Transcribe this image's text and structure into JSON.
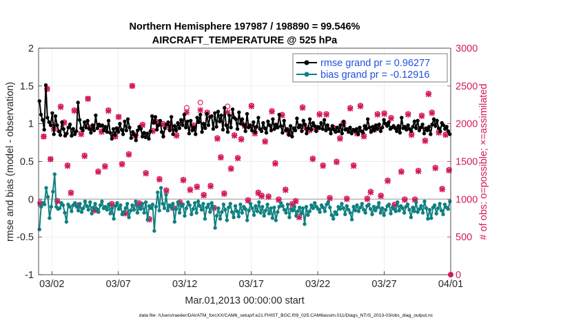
{
  "chart_data": {
    "type": "line",
    "title": "Northern Hemisphere 197987 / 198890 = 99.546%",
    "subtitle": "AIRCRAFT_TEMPERATURE @ 525 hPa",
    "xlabel": "Mar.01,2013 00:00:00 start",
    "ylabel_left": "rmse and bias (model - observation)",
    "ylabel_right": "# of obs: o=possible; ×=assimilated",
    "footer": "data file: /Users/raeder/DAI/ATM_forcXX/CAM6_setup/f.e21.FHIST_BGC.f09_025.CAM6assim.011/Diags_NTrS_2013-03/obs_diag_output.nc",
    "x_tick_labels": [
      "03/02",
      "03/07",
      "03/12",
      "03/17",
      "03/22",
      "03/27",
      "04/01"
    ],
    "x_ticks_day": [
      1,
      6,
      11,
      16,
      21,
      26,
      31
    ],
    "xlim_days": [
      0,
      31
    ],
    "ylim_left": [
      -1,
      2
    ],
    "yticks_left": [
      "-1",
      "-0.5",
      "0",
      "0.5",
      "1",
      "1.5",
      "2"
    ],
    "ylim_right": [
      0,
      3000
    ],
    "yticks_right": [
      "0",
      "500",
      "1000",
      "1500",
      "2000",
      "2500",
      "3000"
    ],
    "grid": true,
    "legend_position": "top-right",
    "series": [
      {
        "name": "rmse grand pr = 0.96277",
        "axis": "left",
        "color": "#000000",
        "values": [
          1.3,
          1.12,
          1.05,
          0.92,
          1.51,
          1.08,
          1.02,
          0.98,
          1.14,
          0.86,
          1.1,
          0.98,
          0.9,
          0.85,
          1.02,
          0.93,
          0.84,
          0.87,
          0.95,
          0.99,
          0.84,
          0.93,
          0.86,
          0.9,
          1.28,
          1.05,
          0.94,
          0.91,
          1.02,
          0.95,
          1.04,
          0.93,
          0.88,
          0.98,
          0.91,
          1.11,
          0.94,
          0.99,
          0.97,
          0.98,
          0.91,
          0.96,
          0.89,
          1.04,
          0.88,
          0.8,
          0.93,
          0.85,
          0.94,
          0.89,
          1.0,
          0.92,
          0.86,
          1.03,
          0.91,
          1.06,
          0.95,
          0.81,
          0.89,
          0.85,
          0.78,
          0.91,
          0.96,
          0.93,
          0.83,
          0.88,
          0.82,
          0.87,
          0.8,
          0.9,
          1.1,
          1.01,
          1.09,
          0.92,
          0.98,
          1.04,
          0.89,
          0.83,
          0.94,
          0.99,
          1.02,
          0.91,
          1.09,
          0.86,
          0.97,
          0.91,
          1.01,
          0.94,
          1.05,
          0.98,
          1.12,
          0.95,
          1.03,
          0.87,
          1.04,
          0.91,
          0.95,
          0.86,
          1.08,
          1.02,
          1.12,
          0.89,
          1.0,
          0.94,
          1.13,
          0.98,
          1.09,
          1.1,
          0.93,
          1.14,
          0.96,
          1.16,
          1.03,
          1.11,
          0.92,
          1.21,
          0.98,
          0.89,
          1.11,
          0.95,
          1.19,
          1.08,
          1.06,
          0.93,
          1.15,
          1.0,
          1.06,
          0.98,
          0.9,
          1.13,
          0.95,
          0.98,
          0.91,
          1.02,
          0.89,
          0.96,
          1.08,
          0.93,
          0.9,
          1.01,
          0.94,
          0.88,
          1.03,
          0.98,
          0.91,
          1.06,
          0.93,
          0.99,
          0.95,
          1.12,
          0.97,
          0.88,
          1.04,
          0.91,
          0.93,
          0.85,
          0.97,
          0.83,
          0.94,
          0.91,
          1.07,
          0.95,
          0.98,
          0.9,
          1.04,
          0.99,
          0.87,
          0.94,
          1.06,
          0.92,
          1.01,
          0.97,
          0.9,
          0.96,
          0.94,
          1.01,
          0.93,
          1.05,
          0.91,
          0.98,
          0.93,
          0.87,
          0.97,
          0.92,
          0.89,
          0.95,
          0.9,
          0.98,
          0.87,
          1.03,
          0.92,
          0.93,
          0.89,
          0.95,
          0.87,
          0.92,
          0.9,
          0.93,
          0.86,
          0.95,
          0.9,
          0.88,
          0.97,
          0.93,
          1.06,
          0.95,
          0.89,
          0.96,
          0.91,
          0.98,
          0.93,
          0.99,
          0.9,
          0.95,
          1.05,
          1.0,
          0.97,
          1.02,
          0.93,
          0.95,
          0.97,
          0.94,
          0.9,
          0.97,
          0.88,
          1.08,
          0.94,
          0.96,
          0.92,
          0.98,
          0.93,
          0.9,
          0.96,
          1.03,
          0.94,
          1.04,
          0.91,
          0.95,
          0.99,
          0.87,
          0.94,
          0.91,
          0.96,
          0.86,
          0.99,
          1.06,
          0.97,
          1.04,
          0.94,
          0.9,
          1.01,
          0.98,
          0.93,
          0.96,
          0.9,
          0.86
        ]
      },
      {
        "name": "bias grand pr = -0.12916",
        "axis": "left",
        "color": "#0f8080",
        "values": [
          -0.4,
          -0.1,
          -0.05,
          -0.07,
          0.15,
          0.03,
          -0.25,
          -0.1,
          0.1,
          0.33,
          -0.1,
          -0.13,
          -0.12,
          -0.05,
          -0.08,
          -0.18,
          -0.3,
          -0.07,
          -0.1,
          -0.16,
          -0.08,
          -0.05,
          -0.09,
          -0.15,
          -0.06,
          -0.17,
          -0.12,
          -0.03,
          -0.09,
          -0.14,
          -0.04,
          -0.19,
          -0.11,
          -0.06,
          -0.13,
          -0.17,
          -0.08,
          -0.03,
          -0.12,
          -0.1,
          -0.14,
          -0.07,
          -0.19,
          -0.12,
          -0.26,
          -0.09,
          -0.05,
          -0.13,
          -0.08,
          -0.2,
          -0.17,
          -0.12,
          -0.06,
          -0.24,
          -0.15,
          -0.08,
          -0.14,
          -0.03,
          -0.18,
          -0.1,
          -0.13,
          -0.06,
          -0.18,
          -0.04,
          -0.27,
          -0.09,
          -0.12,
          -0.07,
          -0.42,
          -0.1,
          0.09,
          -0.15,
          0.15,
          -0.06,
          -0.12,
          0.06,
          -0.15,
          -0.08,
          -0.11,
          -0.06,
          -0.3,
          -0.13,
          -0.04,
          -0.18,
          -0.09,
          -0.07,
          -0.22,
          -0.12,
          -0.04,
          -0.08,
          -0.2,
          -0.13,
          -0.05,
          -0.18,
          -0.03,
          -0.09,
          -0.14,
          -0.06,
          -0.26,
          -0.11,
          -0.07,
          -0.17,
          -0.05,
          -0.11,
          -0.38,
          -0.22,
          -0.12,
          -0.26,
          -0.17,
          -0.07,
          -0.14,
          -0.28,
          -0.11,
          -0.06,
          -0.17,
          -0.24,
          -0.09,
          -0.16,
          -0.23,
          -0.07,
          -0.18,
          -0.1,
          -0.13,
          -0.28,
          -0.15,
          -0.06,
          -0.12,
          -0.21,
          -0.09,
          -0.16,
          -0.04,
          -0.18,
          -0.1,
          -0.22,
          -0.15,
          -0.07,
          -0.19,
          -0.12,
          -0.25,
          -0.11,
          -0.28,
          -0.17,
          -0.1,
          -0.05,
          -0.09,
          -0.14,
          -0.18,
          -0.07,
          -0.24,
          -0.13,
          -0.15,
          -0.1,
          -0.22,
          -0.16,
          -0.11,
          -0.19,
          -0.12,
          -0.33,
          -0.1,
          -0.21,
          -0.16,
          -0.08,
          -0.12,
          -0.05,
          -0.1,
          -0.13,
          -0.17,
          -0.08,
          -0.11,
          -0.16,
          -0.07,
          -0.04,
          -0.11,
          -0.21,
          -0.26,
          -0.17,
          -0.2,
          -0.1,
          -0.13,
          -0.06,
          -0.12,
          -0.2,
          -0.09,
          -0.14,
          -0.18,
          -0.27,
          -0.1,
          -0.15,
          -0.08,
          -0.16,
          -0.11,
          -0.06,
          -0.14,
          -0.18,
          -0.09,
          -0.07,
          -0.13,
          -0.2,
          -0.1,
          -0.15,
          -0.11,
          -0.05,
          -0.18,
          -0.12,
          -0.21,
          -0.14,
          -0.09,
          -0.07,
          -0.19,
          -0.11,
          -0.13,
          -0.16,
          -0.04,
          -0.15,
          -0.09,
          -0.12,
          -0.18,
          -0.1,
          -0.07,
          -0.14,
          -0.24,
          -0.11,
          -0.16,
          -0.04,
          -0.17,
          -0.13,
          -0.09,
          -0.18,
          -0.03,
          -0.12,
          -0.26,
          -0.14,
          -0.25,
          -0.11,
          -0.08,
          -0.19,
          -0.12,
          -0.06,
          -0.15,
          -0.2,
          -0.07,
          -0.11,
          -0.13,
          -0.03
        ]
      }
    ],
    "obs_count_series": [
      {
        "name": "possible",
        "marker": "o",
        "axis": "right",
        "color": "#d4195a",
        "values": [
          950,
          1830,
          2460,
          1530,
          1930,
          980,
          2230,
          2020,
          1450,
          1090,
          2180,
          920,
          1870,
          1580,
          2330,
          1950,
          860,
          1370,
          1900,
          1440,
          2180,
          940,
          1830,
          2090,
          1470,
          820,
          1600,
          2500,
          1850,
          950,
          1990,
          1350,
          740,
          1910,
          2030,
          1270,
          2000,
          1120,
          1960,
          890,
          1850,
          960,
          1260,
          2210,
          1130,
          1980,
          1170,
          2280,
          1060,
          2150,
          1180,
          890,
          1810,
          1560,
          1080,
          2230,
          1410,
          1850,
          1550,
          1800,
          1980,
          990,
          2240,
          1880,
          1090,
          1050,
          1770,
          1040,
          2170,
          1480,
          1000,
          2120,
          1130,
          1890,
          940,
          980,
          770,
          2220,
          1950,
          1920,
          1540,
          1940,
          2130,
          1450,
          2130,
          1020,
          1950,
          1500,
          1810,
          2010,
          1010,
          2210,
          1450,
          1880,
          2240,
          1840,
          1010,
          1100,
          1930,
          2130,
          1050,
          2140,
          1250,
          2080,
          930,
          1940,
          1370,
          1000,
          2130,
          1860,
          1000,
          1380,
          2110,
          1780,
          2400,
          2150,
          1420,
          1890,
          1140,
          1860,
          1390
        ]
      },
      {
        "name": "assimilated",
        "marker": "x",
        "axis": "right",
        "color": "#d4195a",
        "values": [
          940,
          1830,
          2460,
          1530,
          1930,
          970,
          2220,
          2010,
          1440,
          1080,
          2170,
          910,
          1860,
          1570,
          2330,
          1950,
          850,
          1360,
          1890,
          1430,
          2170,
          930,
          1830,
          2090,
          1460,
          810,
          1590,
          2500,
          1840,
          940,
          1980,
          1340,
          730,
          1900,
          2020,
          1260,
          1990,
          1110,
          1950,
          880,
          1840,
          950,
          1250,
          2150,
          1120,
          1970,
          1160,
          2180,
          1050,
          2140,
          1170,
          880,
          1800,
          1550,
          1070,
          2150,
          1400,
          1840,
          1540,
          1790,
          1970,
          980,
          2230,
          1870,
          1080,
          1040,
          1760,
          1030,
          2160,
          1470,
          990,
          2110,
          1120,
          1880,
          930,
          970,
          760,
          2210,
          1940,
          1910,
          1530,
          1930,
          2120,
          1440,
          2120,
          1010,
          1940,
          1490,
          1800,
          2000,
          1000,
          2200,
          1440,
          1870,
          2230,
          1830,
          1000,
          1090,
          1920,
          2120,
          1040,
          2130,
          1240,
          2070,
          920,
          1930,
          1360,
          990,
          2120,
          1850,
          990,
          1370,
          2100,
          1770,
          2390,
          2140,
          1410,
          1880,
          1130,
          1850,
          1380
        ]
      }
    ]
  }
}
